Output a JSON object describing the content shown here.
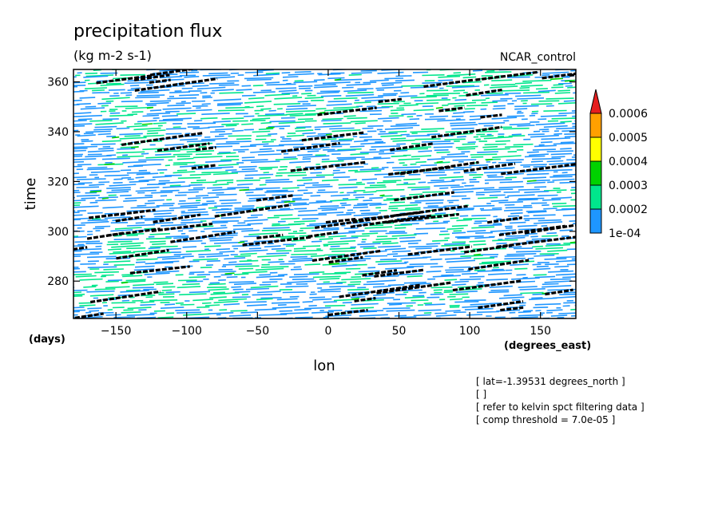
{
  "chart_data": {
    "type": "heatmap",
    "title": "precipitation flux",
    "units": "(kg m-2 s-1)",
    "dataset": "NCAR_control",
    "xlabel": "lon",
    "ylabel": "time",
    "x_unit": "(degrees_east)",
    "y_unit": "(days)",
    "xlim": [
      -180,
      175
    ],
    "ylim": [
      265,
      365
    ],
    "x_ticks": [
      -150,
      -100,
      -50,
      0,
      50,
      100,
      150
    ],
    "y_ticks": [
      280,
      300,
      320,
      340,
      360
    ],
    "x_tick_labels": [
      "−150",
      "−100",
      "−50",
      "0",
      "50",
      "100",
      "150"
    ],
    "y_tick_labels": [
      "280",
      "300",
      "320",
      "340",
      "360"
    ],
    "colorbar": {
      "levels": [
        0.0001,
        0.0002,
        0.0003,
        0.0004,
        0.0005,
        0.0006
      ],
      "labels": [
        "1e-04",
        "0.0002",
        "0.0003",
        "0.0004",
        "0.0005",
        "0.0006"
      ],
      "colors": [
        "#1e96ff",
        "#00e68c",
        "#00d200",
        "#ffff00",
        "#ffa000",
        "#e61e1e"
      ]
    },
    "annotations": [
      "[ lat=-1.39531 degrees_north ]",
      "[  ]",
      "[ refer to kelvin spct filtering data ]",
      "[ comp threshold = 7.0e-05 ]"
    ]
  }
}
